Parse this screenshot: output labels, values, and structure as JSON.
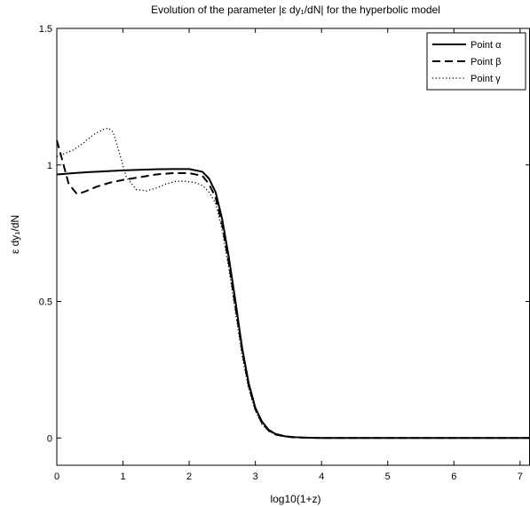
{
  "chart_data": {
    "type": "line",
    "title": "Evolution of the parameter |ε dy₁/dN| for the hyperbolic model",
    "xlabel": "log10(1+z)",
    "ylabel": "ε dy₁/dN",
    "xlim": [
      0,
      7.15
    ],
    "ylim": [
      -0.1,
      1.5
    ],
    "xticks": [
      0,
      1,
      2,
      3,
      4,
      5,
      6,
      7
    ],
    "yticks": [
      0,
      0.5,
      1,
      1.5
    ],
    "xtick_labels": [
      "0",
      "1",
      "2",
      "3",
      "4",
      "5",
      "6",
      "7"
    ],
    "ytick_labels": [
      "0",
      "0.5",
      "1",
      "1.5"
    ],
    "grid": false,
    "legend_position": "top-right",
    "series": [
      {
        "name": "Point α",
        "line_style": "solid",
        "color": "#000000",
        "x": [
          0,
          0.25,
          0.5,
          0.75,
          1.0,
          1.25,
          1.5,
          1.75,
          2.0,
          2.2,
          2.3,
          2.4,
          2.5,
          2.6,
          2.7,
          2.8,
          2.9,
          3.0,
          3.1,
          3.2,
          3.3,
          3.45,
          3.6,
          3.8,
          4.0,
          5.0,
          6.0,
          7.15
        ],
        "y": [
          0.965,
          0.97,
          0.974,
          0.977,
          0.98,
          0.982,
          0.984,
          0.985,
          0.985,
          0.975,
          0.95,
          0.9,
          0.8,
          0.66,
          0.5,
          0.33,
          0.2,
          0.11,
          0.06,
          0.03,
          0.015,
          0.006,
          0.003,
          0.001,
          0.0,
          0.0,
          0.0,
          0.0
        ]
      },
      {
        "name": "Point β",
        "line_style": "dashed",
        "color": "#000000",
        "x": [
          0,
          0.08,
          0.18,
          0.3,
          0.4,
          0.6,
          0.8,
          1.0,
          1.25,
          1.5,
          1.75,
          2.0,
          2.2,
          2.3,
          2.4,
          2.5,
          2.6,
          2.7,
          2.8,
          2.9,
          3.0,
          3.1,
          3.2,
          3.3,
          3.45,
          3.6,
          3.8,
          4.0,
          5.0,
          6.0,
          7.15
        ],
        "y": [
          1.09,
          1.02,
          0.93,
          0.895,
          0.9,
          0.92,
          0.935,
          0.945,
          0.955,
          0.965,
          0.97,
          0.97,
          0.96,
          0.93,
          0.88,
          0.78,
          0.64,
          0.48,
          0.32,
          0.19,
          0.105,
          0.055,
          0.027,
          0.013,
          0.005,
          0.002,
          0.001,
          0.0,
          0.0,
          0.0,
          0.0
        ]
      },
      {
        "name": "Point γ",
        "line_style": "dotted",
        "color": "#000000",
        "x": [
          0,
          0.1,
          0.25,
          0.4,
          0.55,
          0.7,
          0.78,
          0.85,
          0.95,
          1.05,
          1.2,
          1.35,
          1.5,
          1.65,
          1.8,
          1.95,
          2.1,
          2.2,
          2.3,
          2.4,
          2.5,
          2.6,
          2.7,
          2.8,
          2.9,
          3.0,
          3.1,
          3.2,
          3.3,
          3.45,
          3.6,
          3.8,
          4.0,
          5.0,
          6.0,
          7.15
        ],
        "y": [
          1.03,
          1.04,
          1.055,
          1.08,
          1.11,
          1.13,
          1.135,
          1.12,
          1.04,
          0.955,
          0.91,
          0.905,
          0.915,
          0.93,
          0.94,
          0.94,
          0.935,
          0.925,
          0.9,
          0.86,
          0.76,
          0.62,
          0.46,
          0.3,
          0.18,
          0.1,
          0.05,
          0.025,
          0.012,
          0.005,
          0.002,
          0.001,
          0.0,
          0.0,
          0.0,
          0.0
        ]
      }
    ]
  }
}
